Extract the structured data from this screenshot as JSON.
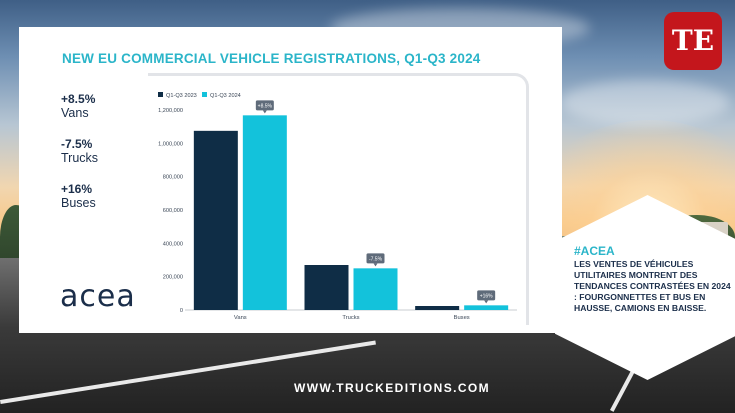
{
  "header": {
    "title": "NEW EU COMMERCIAL VEHICLE REGISTRATIONS, Q1-Q3 2024"
  },
  "highlights": [
    {
      "pct": "+8.5%",
      "label": "Vans"
    },
    {
      "pct": "-7.5%",
      "label": "Trucks"
    },
    {
      "pct": "+16%",
      "label": "Buses"
    }
  ],
  "logo": {
    "text": "acea"
  },
  "chart_data": {
    "type": "bar",
    "title": "",
    "xlabel": "",
    "ylabel": "",
    "categories": [
      "Vans",
      "Trucks",
      "Buses"
    ],
    "series": [
      {
        "name": "Q1-Q3 2023",
        "values": [
          1075000,
          270000,
          24000
        ]
      },
      {
        "name": "Q1-Q3 2024",
        "values": [
          1168000,
          250000,
          28000
        ]
      }
    ],
    "annotations": [
      "+8.5%",
      "-7.5%",
      "+16%"
    ],
    "y_ticks": [
      0,
      200000,
      400000,
      600000,
      800000,
      1000000,
      1200000
    ],
    "y_tick_labels": [
      "0",
      "200,000",
      "400,000",
      "600,000",
      "800,000",
      "1,000,000",
      "1,200,000"
    ],
    "ylim": [
      0,
      1200000
    ],
    "grid": false,
    "legend_position": "top-left",
    "colors": {
      "2023": "#0f2d46",
      "2024": "#13c2db"
    }
  },
  "callout": {
    "hashtag": "#ACEA",
    "text": "LES VENTES DE VÉHICULES UTILITAIRES MONTRENT DES TENDANCES CONTRASTÉES EN 2024 : FOURGONNETTES ET BUS EN HAUSSE, CAMIONS EN BAISSE."
  },
  "brand": {
    "badge_text": "TE",
    "badge_color": "#c4161c"
  },
  "footer": {
    "url": "WWW.TRUCKEDITIONS.COM"
  },
  "accent": "#2bb5c9"
}
